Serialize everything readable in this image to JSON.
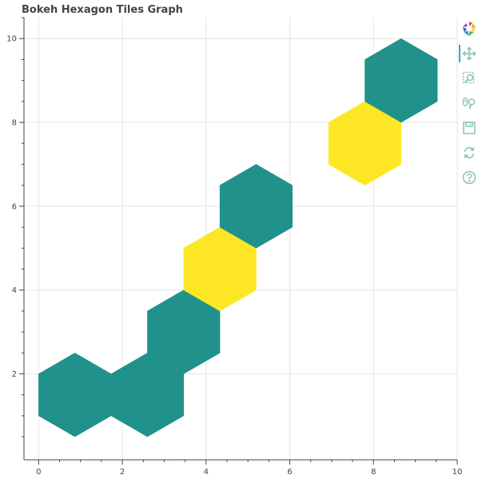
{
  "chart_data": {
    "type": "hexagon tiles",
    "title": "Bokeh Hexagon Tiles Graph",
    "xlabel": "",
    "ylabel": "",
    "xlim": [
      -0.35,
      10
    ],
    "ylim": [
      -0.05,
      10.5
    ],
    "x_ticks": [
      "0",
      "2",
      "4",
      "6",
      "8",
      "10"
    ],
    "y_ticks": [
      "2",
      "4",
      "6",
      "8",
      "10"
    ],
    "grid": true,
    "hex_circumradius": 1,
    "tiles": [
      {
        "x": 0.866,
        "y": 1.5,
        "color": "#21918c"
      },
      {
        "x": 2.598,
        "y": 1.5,
        "color": "#21918c"
      },
      {
        "x": 3.464,
        "y": 3.0,
        "color": "#21918c"
      },
      {
        "x": 4.33,
        "y": 4.5,
        "color": "#fde725"
      },
      {
        "x": 5.196,
        "y": 6.0,
        "color": "#21918c"
      },
      {
        "x": 7.794,
        "y": 7.5,
        "color": "#fde725"
      },
      {
        "x": 8.66,
        "y": 9.0,
        "color": "#21918c"
      }
    ]
  },
  "toolbar": {
    "tools": [
      "bokeh-logo-icon",
      "pan-icon",
      "box-zoom-icon",
      "wheel-zoom-icon",
      "save-icon",
      "reset-icon",
      "help-icon"
    ]
  },
  "colors": {
    "teal": "#21918c",
    "yellow": "#fde725",
    "grid": "#e5e5e5",
    "axis": "#444444",
    "tool_icon": "#89c4ba"
  }
}
